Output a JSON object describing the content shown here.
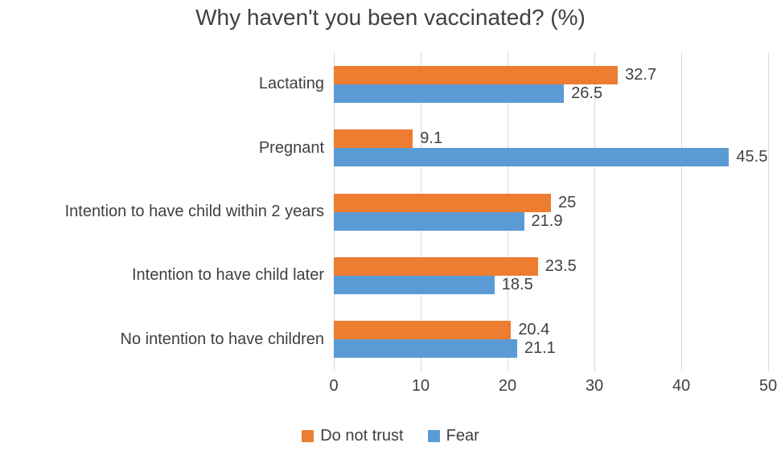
{
  "chart_data": {
    "type": "bar",
    "orientation": "horizontal",
    "title": "Why haven't you been vaccinated? (%)",
    "categories": [
      "Lactating",
      "Pregnant",
      "Intention to have child within 2 years",
      "Intention to have child later",
      "No intention to have children"
    ],
    "series": [
      {
        "name": "Do not trust",
        "color": "#ED7D31",
        "values": [
          32.7,
          9.1,
          25,
          23.5,
          20.4
        ]
      },
      {
        "name": "Fear",
        "color": "#5B9BD5",
        "values": [
          26.5,
          45.5,
          21.9,
          18.5,
          21.1
        ]
      }
    ],
    "xlim": [
      0,
      50
    ],
    "xticks": [
      0,
      10,
      20,
      30,
      40,
      50
    ],
    "grid": true,
    "legend_position": "bottom",
    "value_labels": true
  },
  "colors": {
    "grid": "#d9d9d9",
    "text": "#404040",
    "background": "#ffffff"
  }
}
